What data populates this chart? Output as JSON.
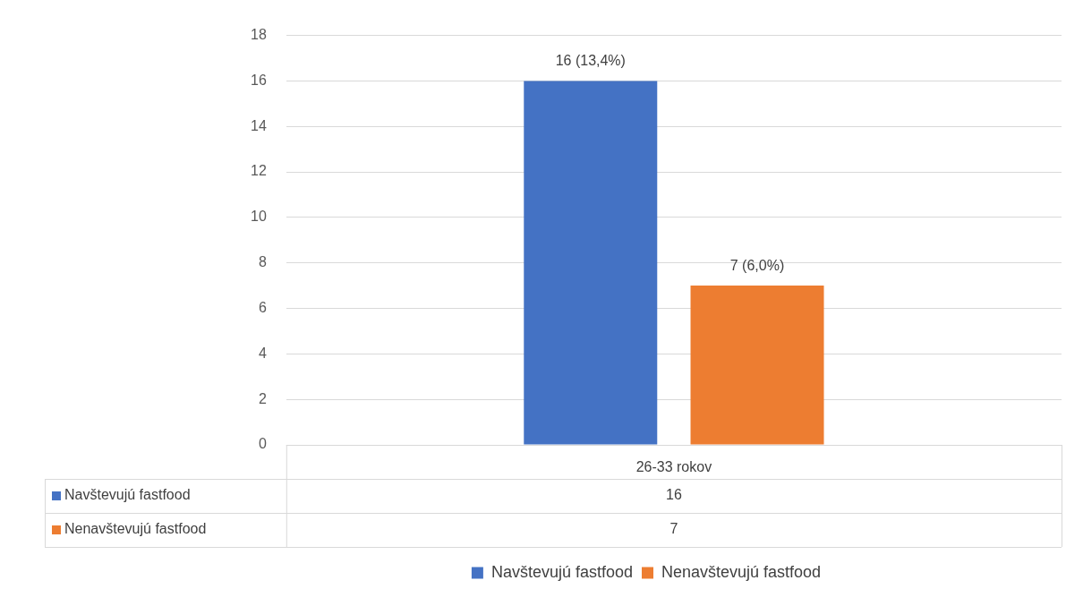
{
  "chart_data": {
    "type": "bar",
    "categories": [
      "26-33 rokov"
    ],
    "series": [
      {
        "name": "Navštevujú fastfood",
        "color": "#4472c4",
        "values": [
          16
        ],
        "value_labels": [
          "16 (13,4%)"
        ]
      },
      {
        "name": "Nenavštevujú fastfood",
        "color": "#ed7d31",
        "values": [
          7
        ],
        "value_labels": [
          "7 (6,0%)"
        ]
      }
    ],
    "annotations": [
      "16",
      "7"
    ],
    "ylim": [
      0,
      18
    ],
    "yticks": [
      0,
      2,
      4,
      6,
      8,
      10,
      12,
      14,
      16,
      18
    ],
    "grid": "y",
    "legend": "bottom"
  }
}
